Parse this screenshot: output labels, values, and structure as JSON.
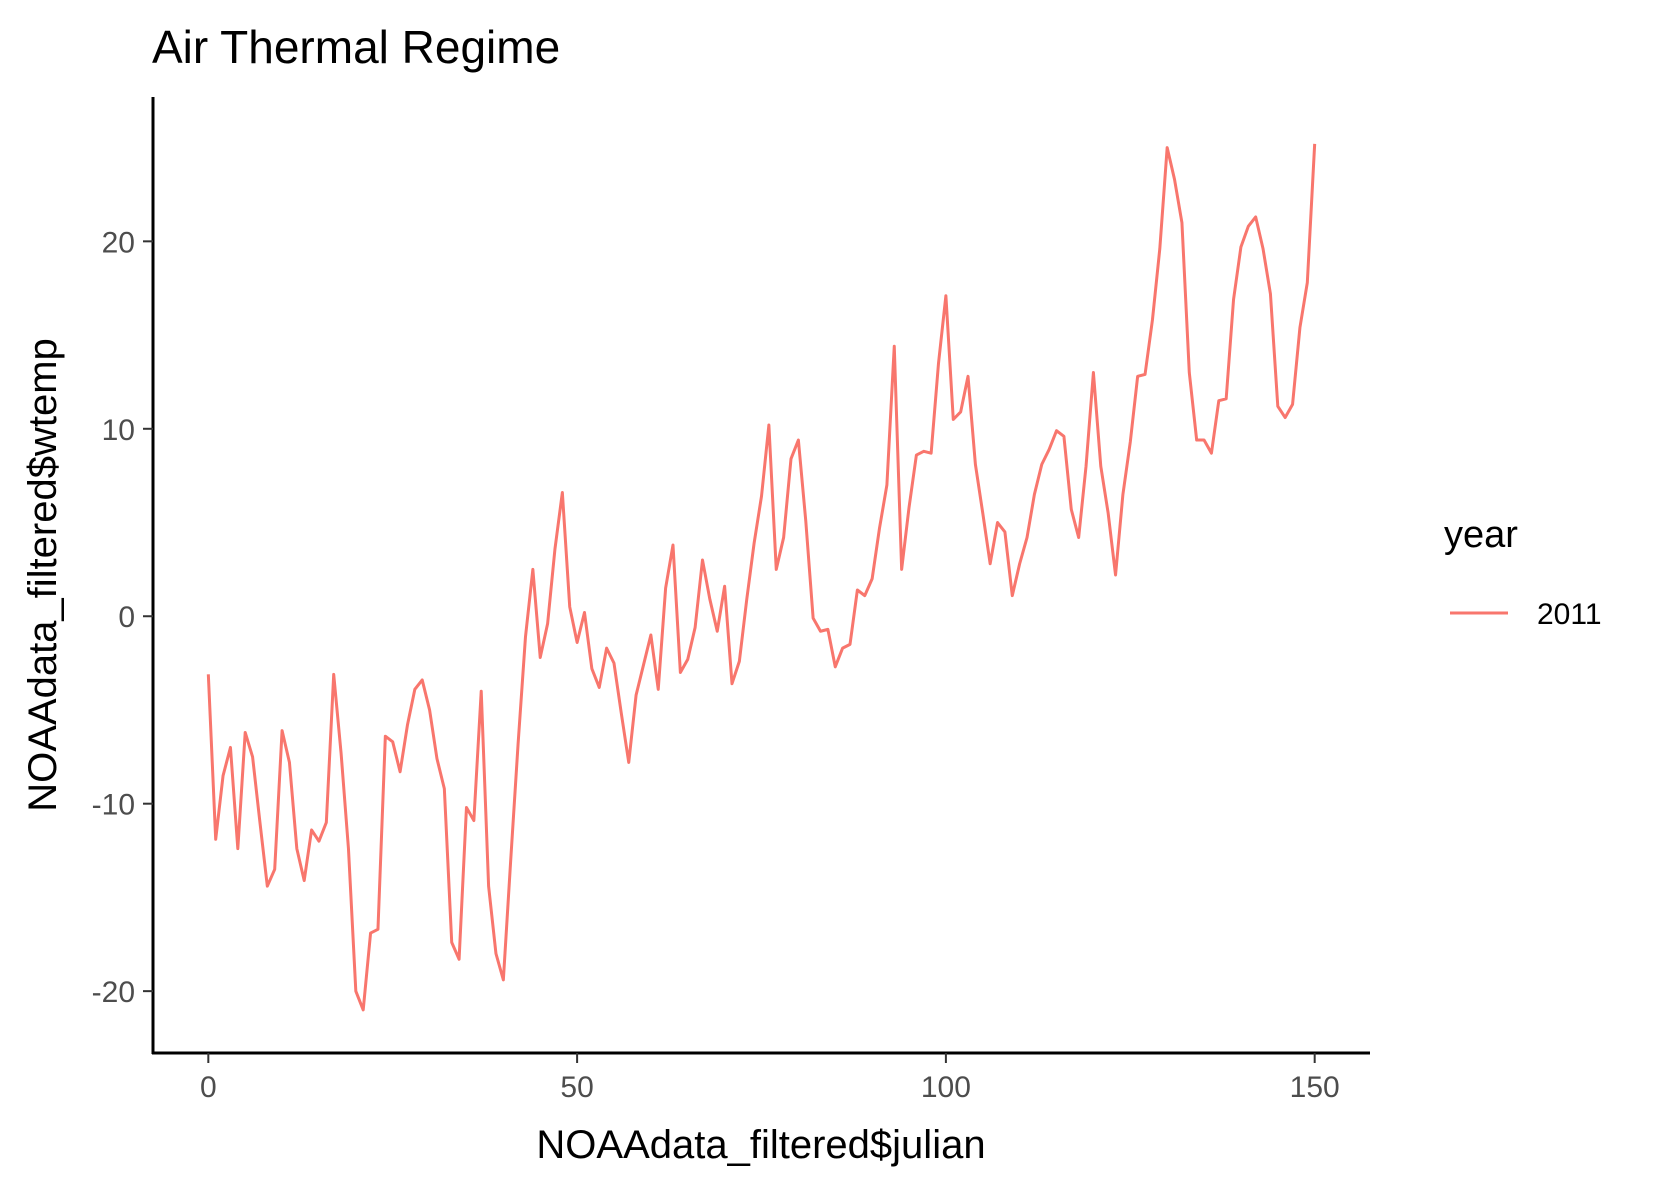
{
  "chart_data": {
    "type": "line",
    "title": "Air Thermal Regime",
    "xlabel": "NOAAdata_filtered$julian",
    "ylabel": "NOAAdata_filtered$wtemp",
    "xlim": [
      -7.5,
      157.5
    ],
    "ylim": [
      -23.3,
      27.7
    ],
    "x_ticks": [
      0,
      50,
      100,
      150
    ],
    "x_tick_labels": [
      "0",
      "50",
      "100",
      "150"
    ],
    "y_ticks": [
      -20,
      -10,
      0,
      10,
      20
    ],
    "y_tick_labels": [
      "-20",
      "-10",
      "0",
      "10",
      "20"
    ],
    "grid": false,
    "legend": {
      "title": "year",
      "position": "right"
    },
    "series": [
      {
        "name": "2011",
        "color": "#F8766D",
        "x": [
          0,
          1,
          2,
          3,
          4,
          5,
          6,
          7,
          8,
          9,
          10,
          11,
          12,
          13,
          14,
          15,
          16,
          17,
          18,
          19,
          20,
          21,
          22,
          23,
          24,
          25,
          26,
          27,
          28,
          29,
          30,
          31,
          32,
          33,
          34,
          35,
          36,
          37,
          38,
          39,
          40,
          41,
          42,
          43,
          44,
          45,
          46,
          47,
          48,
          49,
          50,
          51,
          52,
          53,
          54,
          55,
          56,
          57,
          58,
          59,
          60,
          61,
          62,
          63,
          64,
          65,
          66,
          67,
          68,
          69,
          70,
          71,
          72,
          73,
          74,
          75,
          76,
          77,
          78,
          79,
          80,
          81,
          82,
          83,
          84,
          85,
          86,
          87,
          88,
          89,
          90,
          91,
          92,
          93,
          94,
          95,
          96,
          97,
          98,
          99,
          100,
          101,
          102,
          103,
          104,
          105,
          106,
          107,
          108,
          109,
          110,
          111,
          112,
          113,
          114,
          115,
          116,
          117,
          118,
          119,
          120,
          121,
          122,
          123,
          124,
          125,
          126,
          127,
          128,
          129,
          130,
          131,
          132,
          133,
          134,
          135,
          136,
          137,
          138,
          139,
          140,
          141,
          142,
          143,
          144,
          145,
          146,
          147,
          148,
          149,
          150
        ],
        "values": [
          -3.1,
          -11.9,
          -8.5,
          -7.0,
          -12.4,
          -6.2,
          -7.5,
          -11.0,
          -14.4,
          -13.5,
          -6.1,
          -7.8,
          -12.4,
          -14.1,
          -11.4,
          -12.0,
          -11.0,
          -3.1,
          -7.3,
          -12.4,
          -20.0,
          -21.0,
          -16.9,
          -16.7,
          -6.4,
          -6.7,
          -8.3,
          -5.8,
          -3.9,
          -3.4,
          -5.0,
          -7.6,
          -9.2,
          -17.4,
          -18.3,
          -10.2,
          -10.9,
          -4.0,
          -14.4,
          -18.0,
          -19.4,
          -13.0,
          -6.8,
          -1.1,
          2.5,
          -2.2,
          -0.4,
          3.6,
          6.6,
          0.5,
          -1.4,
          0.2,
          -2.8,
          -3.8,
          -1.7,
          -2.5,
          -5.2,
          -7.8,
          -4.2,
          -2.6,
          -1.0,
          -3.9,
          1.5,
          3.8,
          -3.0,
          -2.3,
          -0.6,
          3.0,
          0.9,
          -0.8,
          1.6,
          -3.6,
          -2.4,
          0.9,
          3.9,
          6.4,
          10.2,
          2.5,
          4.2,
          8.4,
          9.4,
          5.1,
          -0.1,
          -0.8,
          -0.7,
          -2.7,
          -1.7,
          -1.5,
          1.4,
          1.1,
          2.0,
          4.7,
          7.0,
          14.4,
          2.5,
          5.8,
          8.6,
          8.8,
          8.7,
          13.5,
          17.1,
          10.5,
          10.9,
          12.8,
          8.1,
          5.5,
          2.8,
          5.0,
          4.5,
          1.1,
          2.8,
          4.2,
          6.5,
          8.1,
          8.9,
          9.9,
          9.6,
          5.7,
          4.2,
          8.0,
          13.0,
          8.0,
          5.5,
          2.2,
          6.5,
          9.3,
          12.8,
          12.9,
          15.8,
          19.6,
          25.0,
          23.3,
          21.0,
          13.0,
          9.4,
          9.4,
          8.7,
          11.5,
          11.6,
          16.9,
          19.7,
          20.8,
          21.3,
          19.6,
          17.2,
          11.2,
          10.6,
          11.3,
          15.4,
          17.8,
          25.2
        ]
      }
    ]
  }
}
